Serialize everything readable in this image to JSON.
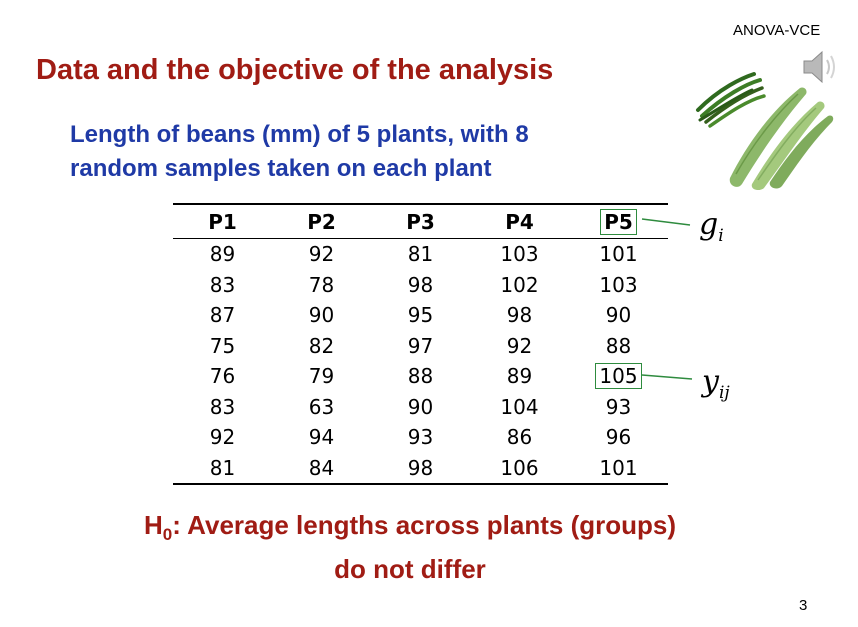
{
  "header": {
    "tag": "ANOVA-VCE"
  },
  "title": "Data and the objective of the analysis",
  "subtitle": {
    "line1": "Length of beans (mm) of 5 plants, with 8",
    "line2": "random samples taken on each plant"
  },
  "table": {
    "columns": [
      "P1",
      "P2",
      "P3",
      "P4",
      "P5"
    ],
    "rows": [
      [
        "89",
        "92",
        "81",
        "103",
        "101"
      ],
      [
        "83",
        "78",
        "98",
        "102",
        "103"
      ],
      [
        "87",
        "90",
        "95",
        "98",
        "90"
      ],
      [
        "75",
        "82",
        "97",
        "92",
        "88"
      ],
      [
        "76",
        "79",
        "88",
        "89",
        "105"
      ],
      [
        "83",
        "63",
        "90",
        "104",
        "93"
      ],
      [
        "92",
        "94",
        "93",
        "86",
        "96"
      ],
      [
        "81",
        "84",
        "98",
        "106",
        "101"
      ]
    ],
    "highlight_color": "#2e8b3e"
  },
  "annotations": {
    "group_symbol": "g",
    "group_subscript": "i",
    "obs_symbol": "y",
    "obs_subscript": "ij"
  },
  "hypothesis": {
    "h": "H",
    "h_sub": "0",
    "line1_rest": ": Average lengths across plants (groups)",
    "line2": "do not differ"
  },
  "page_number": "3",
  "icons": {
    "speaker": "speaker-icon",
    "beans": "green-beans-image"
  },
  "colors": {
    "title": "#a01c14",
    "subtitle": "#1f3aa6",
    "highlight": "#2e8b3e"
  }
}
